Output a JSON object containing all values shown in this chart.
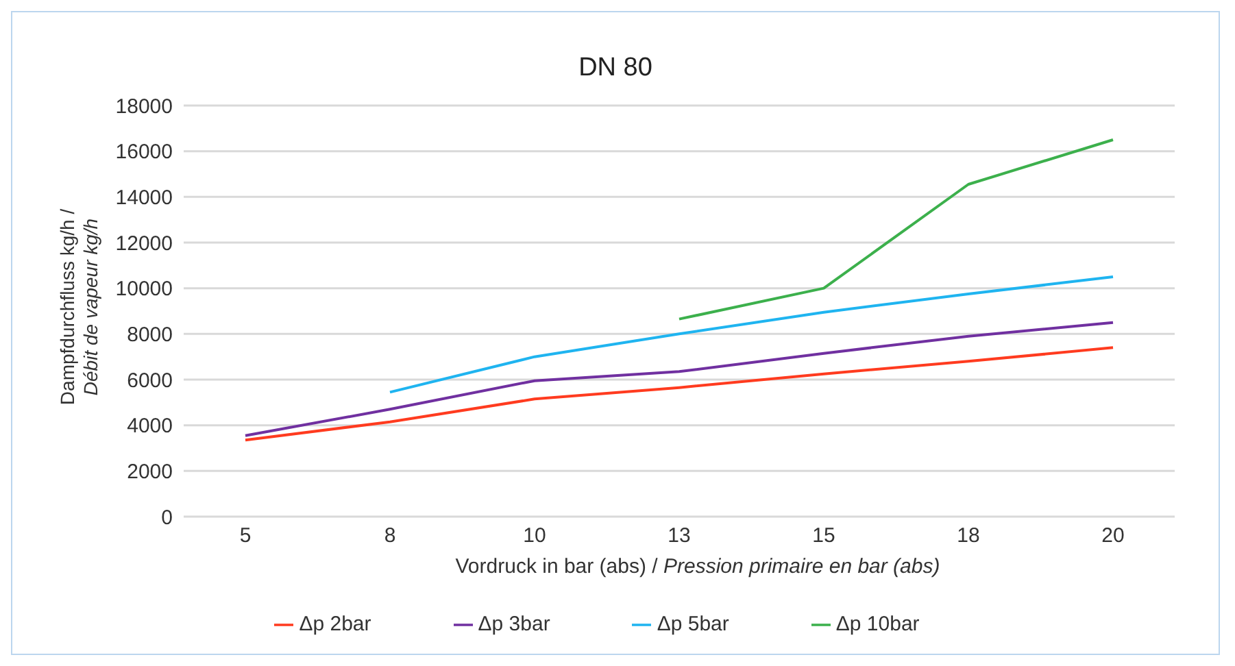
{
  "chart_data": {
    "type": "line",
    "title": "DN 80",
    "xlabel": "Vordruck in bar (abs) / Pression primaire en bar (abs)",
    "ylabel": "Dampfdurchfluss kg/h / Débit de vapeur kg/h",
    "categories": [
      "5",
      "8",
      "10",
      "13",
      "15",
      "18",
      "20"
    ],
    "series": [
      {
        "name": "Δp 2bar",
        "color": "#ff3b1f",
        "values": [
          3350,
          4150,
          5150,
          5650,
          6250,
          6800,
          7400
        ]
      },
      {
        "name": "Δp 3bar",
        "color": "#7030a0",
        "values": [
          3550,
          4700,
          5950,
          6350,
          7150,
          7900,
          8500
        ]
      },
      {
        "name": "Δp 5bar",
        "color": "#1fb4f0",
        "values": [
          null,
          5450,
          7000,
          8000,
          8950,
          9750,
          10500
        ]
      },
      {
        "name": "Δp 10bar",
        "color": "#3cb04c",
        "values": [
          null,
          null,
          null,
          8650,
          10000,
          14550,
          16500
        ]
      }
    ],
    "ylim": [
      0,
      18000
    ],
    "yticks": [
      0,
      2000,
      4000,
      6000,
      8000,
      10000,
      12000,
      14000,
      16000,
      18000
    ],
    "grid": "y",
    "legend": "bottom",
    "marker": "none",
    "line_style": "solid"
  }
}
